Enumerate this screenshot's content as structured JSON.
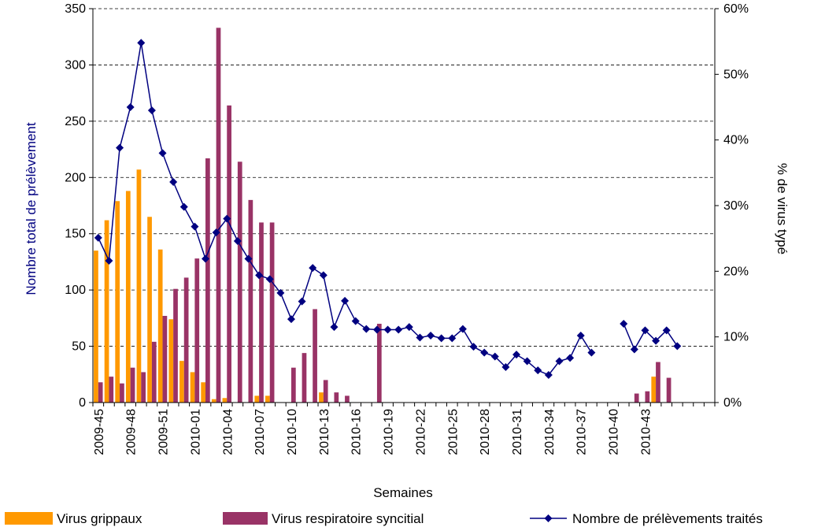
{
  "chart_data": {
    "type": "bar",
    "xlabel": "Semaines",
    "ylabel_left": "Nombre total de prélèvement",
    "ylabel_right": "% de virus typé",
    "ylim_left": [
      0,
      350
    ],
    "ylim_right": [
      0,
      60
    ],
    "yticks_left": [
      "0",
      "50",
      "100",
      "150",
      "200",
      "250",
      "300",
      "350"
    ],
    "yticks_right": [
      "0%",
      "10%",
      "20%",
      "30%",
      "40%",
      "50%",
      "60%"
    ],
    "colors": {
      "grippaux": "#FF9900",
      "rsv": "#993366",
      "line": "#000080"
    },
    "categories": [
      "2009-45",
      "2009-46",
      "2009-47",
      "2009-48",
      "2009-49",
      "2009-50",
      "2009-51",
      "2009-52",
      "2009-53",
      "2010-01",
      "2010-02",
      "2010-03",
      "2010-04",
      "2010-05",
      "2010-06",
      "2010-07",
      "2010-08",
      "2010-09",
      "2010-10",
      "2010-11",
      "2010-12",
      "2010-13",
      "2010-14",
      "2010-15",
      "2010-16",
      "2010-17",
      "2010-18",
      "2010-19",
      "2010-20",
      "2010-21",
      "2010-22",
      "2010-23",
      "2010-24",
      "2010-25",
      "2010-26",
      "2010-27",
      "2010-28",
      "2010-29",
      "2010-30",
      "2010-31",
      "2010-32",
      "2010-33",
      "2010-34",
      "2010-35",
      "2010-36",
      "2010-37",
      "2010-38",
      "2010-39",
      "2010-40",
      "2010-41",
      "2010-42",
      "2010-43",
      "2010-44",
      "2010-45",
      "2010-46",
      "2010-47",
      "2010-48",
      "2010-49"
    ],
    "x_tick_labels": [
      "2009-45",
      "2009-48",
      "2009-51",
      "2010-01",
      "2010-04",
      "2010-07",
      "2010-10",
      "2010-13",
      "2010-16",
      "2010-19",
      "2010-22",
      "2010-25",
      "2010-28",
      "2010-31",
      "2010-34",
      "2010-37",
      "2010-40",
      "2010-43"
    ],
    "series": [
      {
        "name": "Virus grippaux",
        "type": "bar",
        "axis": "left",
        "values": [
          135,
          162,
          179,
          188,
          207,
          165,
          136,
          74,
          37,
          27,
          18,
          3,
          4,
          0,
          0,
          6,
          6,
          0,
          0,
          0,
          0,
          9,
          0,
          0,
          0,
          0,
          0,
          0,
          0,
          0,
          0,
          0,
          0,
          0,
          0,
          0,
          0,
          0,
          0,
          0,
          0,
          0,
          0,
          0,
          0,
          0,
          0,
          0,
          0,
          0,
          0,
          0,
          23,
          0,
          0,
          0,
          0,
          0
        ]
      },
      {
        "name": "Virus respiratoire syncitial",
        "type": "bar",
        "axis": "left",
        "values": [
          18,
          23,
          17,
          31,
          27,
          54,
          77,
          101,
          111,
          128,
          217,
          333,
          264,
          214,
          180,
          160,
          160,
          0,
          31,
          44,
          83,
          20,
          9,
          6,
          0,
          0,
          70,
          0,
          0,
          0,
          0,
          0,
          0,
          0,
          0,
          0,
          0,
          0,
          0,
          0,
          0,
          0,
          0,
          0,
          0,
          0,
          0,
          0,
          0,
          0,
          8,
          10,
          36,
          22,
          0,
          0,
          0,
          0
        ]
      },
      {
        "name": "Nombre de prélèvements traités",
        "type": "line",
        "axis": "right",
        "values": [
          25.1,
          21.6,
          38.8,
          45,
          54.8,
          44.5,
          38,
          33.6,
          29.8,
          26.8,
          21.9,
          25.9,
          28,
          24.6,
          21.9,
          19.4,
          18.8,
          16.7,
          12.7,
          15.4,
          20.5,
          19.4,
          11.5,
          15.5,
          12.4,
          11.2,
          11.1,
          11.1,
          11.1,
          11.5,
          9.9,
          10.2,
          9.8,
          9.8,
          11.2,
          8.5,
          7.6,
          7,
          5.4,
          7.3,
          6.3,
          4.9,
          4.2,
          6.3,
          6.8,
          10.2,
          7.6,
          null,
          null,
          12,
          8.1,
          11,
          9.4,
          11,
          8.6,
          null,
          null,
          null
        ]
      }
    ],
    "legend_position": "bottom"
  }
}
